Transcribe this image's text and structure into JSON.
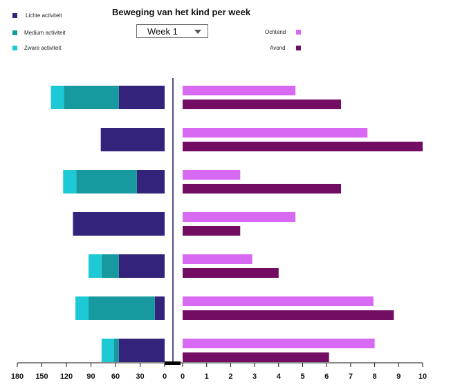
{
  "title": "Beweging van het kind per week",
  "week_selector": {
    "value": "Week  1"
  },
  "legend_left": [
    {
      "label": "Lichte activiteit",
      "color": "#34237a"
    },
    {
      "label": "Medium activiteit",
      "color": "#169aa0"
    },
    {
      "label": "Zware activiteit",
      "color": "#1cc9d4"
    }
  ],
  "legend_right": [
    {
      "label": "Ochtend",
      "color": "#d769f2"
    },
    {
      "label": "Avond",
      "color": "#720d63"
    }
  ],
  "chart_data": [
    {
      "type": "bar",
      "orientation": "horizontal",
      "stacked": true,
      "x_direction": "reversed",
      "xlim": [
        0,
        180
      ],
      "x_ticks": [
        180,
        150,
        120,
        90,
        60,
        30,
        0
      ],
      "series": [
        {
          "name": "Lichte activiteit",
          "color": "#34237a",
          "values": [
            56,
            78,
            34,
            112,
            56,
            12,
            56
          ]
        },
        {
          "name": "Medium activiteit",
          "color": "#169aa0",
          "values": [
            67,
            0,
            74,
            0,
            21,
            81,
            6
          ]
        },
        {
          "name": "Zware activiteit",
          "color": "#1cc9d4",
          "values": [
            16,
            0,
            16,
            0,
            16,
            16,
            15
          ]
        }
      ]
    },
    {
      "type": "bar",
      "orientation": "horizontal",
      "stacked": false,
      "xlim": [
        0,
        10
      ],
      "x_ticks": [
        0,
        1,
        2,
        3,
        4,
        5,
        6,
        7,
        8,
        9,
        10
      ],
      "series": [
        {
          "name": "Ochtend",
          "color": "#d769f2",
          "values": [
            4.7,
            7.7,
            2.4,
            4.7,
            2.9,
            7.95,
            8.0
          ]
        },
        {
          "name": "Avond",
          "color": "#720d63",
          "values": [
            6.6,
            10.0,
            6.6,
            2.4,
            4.0,
            8.8,
            6.1
          ]
        }
      ]
    }
  ]
}
